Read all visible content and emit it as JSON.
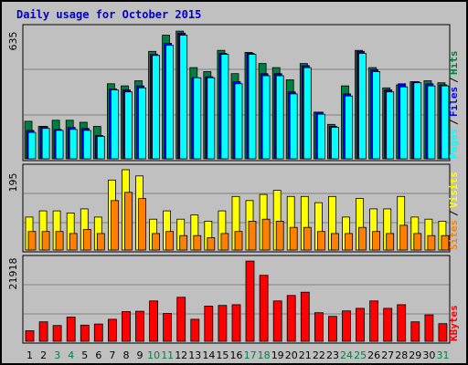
{
  "title": "Daily usage for October 2015",
  "chart_data": [
    {
      "type": "bar",
      "panel": "pages-files-hits",
      "ymax_label": "635",
      "ylim": [
        0,
        635
      ],
      "categories": [
        "1",
        "2",
        "3",
        "4",
        "5",
        "6",
        "7",
        "8",
        "9",
        "10",
        "11",
        "12",
        "13",
        "14",
        "15",
        "16",
        "17",
        "18",
        "19",
        "20",
        "21",
        "22",
        "23",
        "24",
        "25",
        "26",
        "27",
        "28",
        "29",
        "30",
        "31"
      ],
      "weekend_days": [
        "3",
        "4",
        "10",
        "11",
        "17",
        "18",
        "24",
        "25",
        "31"
      ],
      "series": [
        {
          "name": "Hits",
          "color": "#008040",
          "values": [
            185,
            160,
            190,
            190,
            180,
            160,
            370,
            360,
            385,
            530,
            610,
            630,
            450,
            430,
            535,
            420,
            525,
            470,
            450,
            390,
            470,
            230,
            170,
            360,
            535,
            450,
            350,
            365,
            380,
            385,
            375
          ]
        },
        {
          "name": "Files",
          "color": "#0000ff",
          "values": [
            140,
            160,
            145,
            155,
            150,
            115,
            345,
            340,
            360,
            515,
            570,
            620,
            400,
            405,
            520,
            380,
            520,
            420,
            420,
            330,
            460,
            230,
            160,
            320,
            530,
            440,
            340,
            370,
            380,
            370,
            365
          ]
        },
        {
          "name": "Pages",
          "color": "#00ffff",
          "values": [
            130,
            150,
            140,
            145,
            140,
            110,
            340,
            330,
            350,
            510,
            560,
            610,
            400,
            400,
            515,
            370,
            515,
            410,
            410,
            320,
            450,
            220,
            155,
            310,
            520,
            430,
            330,
            355,
            375,
            360,
            360
          ]
        }
      ],
      "legend_labels": [
        "Pages",
        "/",
        "Files",
        "/",
        "Hits"
      ]
    },
    {
      "type": "bar",
      "panel": "sites-visits",
      "ymax_label": "195",
      "ylim": [
        0,
        195
      ],
      "categories": [
        "1",
        "2",
        "3",
        "4",
        "5",
        "6",
        "7",
        "8",
        "9",
        "10",
        "11",
        "12",
        "13",
        "14",
        "15",
        "16",
        "17",
        "18",
        "19",
        "20",
        "21",
        "22",
        "23",
        "24",
        "25",
        "26",
        "27",
        "28",
        "29",
        "30",
        "31"
      ],
      "series": [
        {
          "name": "Visits",
          "color": "#ffff00",
          "values": [
            80,
            95,
            95,
            90,
            100,
            80,
            170,
            195,
            180,
            75,
            95,
            75,
            85,
            70,
            95,
            130,
            120,
            135,
            145,
            130,
            130,
            115,
            130,
            80,
            125,
            100,
            100,
            130,
            80,
            75,
            70
          ]
        },
        {
          "name": "Sites",
          "color": "#ff8000",
          "values": [
            45,
            45,
            45,
            40,
            50,
            40,
            120,
            140,
            125,
            40,
            45,
            35,
            35,
            30,
            40,
            45,
            70,
            75,
            70,
            55,
            55,
            45,
            40,
            40,
            55,
            45,
            40,
            60,
            40,
            35,
            35
          ]
        }
      ],
      "legend_labels": [
        "Sites",
        "/",
        "Visits"
      ]
    },
    {
      "type": "bar",
      "panel": "kbytes",
      "ymax_label": "21918",
      "ylim": [
        0,
        21918
      ],
      "categories": [
        "1",
        "2",
        "3",
        "4",
        "5",
        "6",
        "7",
        "8",
        "9",
        "10",
        "11",
        "12",
        "13",
        "14",
        "15",
        "16",
        "17",
        "18",
        "19",
        "20",
        "21",
        "22",
        "23",
        "24",
        "25",
        "26",
        "27",
        "28",
        "29",
        "30",
        "31"
      ],
      "series": [
        {
          "name": "KBytes",
          "color": "#ff0000",
          "values": [
            2900,
            5300,
            4300,
            6600,
            4400,
            4700,
            6000,
            8100,
            8200,
            11000,
            7600,
            12000,
            6000,
            9600,
            9800,
            10000,
            21900,
            18000,
            11000,
            12500,
            13400,
            7800,
            6800,
            8300,
            9000,
            11000,
            9000,
            10000,
            5300,
            7200,
            4800
          ]
        }
      ],
      "legend_labels": [
        "KBytes"
      ]
    }
  ],
  "colors": {
    "background": "#c0c0c0",
    "title": "#0000cc",
    "weekday_label": "#000000",
    "weekend_label": "#008040"
  }
}
